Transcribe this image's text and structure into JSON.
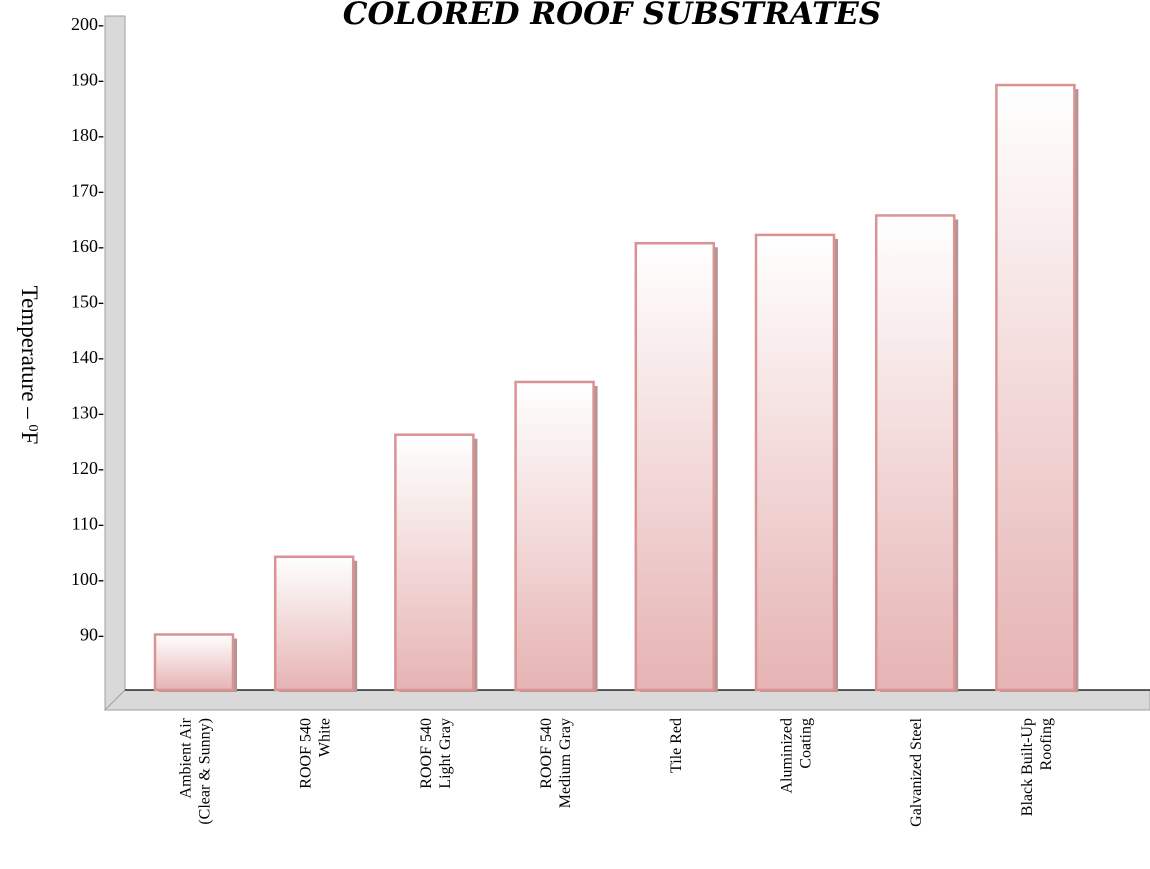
{
  "chart_data": {
    "type": "bar",
    "title": "COLORED ROOF SUBSTRATES",
    "ylabel": "Temperature – ",
    "ylabel_unit_sup": "0",
    "ylabel_unit": "F",
    "ylim": [
      80,
      200
    ],
    "yticks": [
      90,
      100,
      110,
      120,
      130,
      140,
      150,
      160,
      170,
      180,
      190,
      200
    ],
    "ytick_labels": [
      "90-",
      "100-",
      "110-",
      "120-",
      "130-",
      "140-",
      "150-",
      "160-",
      "170-",
      "180-",
      "190-",
      "200-"
    ],
    "categories": [
      {
        "lines": [
          "Ambient Air",
          "(Clear & Sunny)"
        ]
      },
      {
        "lines": [
          "ROOF 540",
          "White"
        ]
      },
      {
        "lines": [
          "ROOF 540",
          "Light Gray"
        ]
      },
      {
        "lines": [
          "ROOF 540",
          "Medium Gray"
        ]
      },
      {
        "lines": [
          "Tile Red"
        ]
      },
      {
        "lines": [
          "Aluminized",
          "Coating"
        ]
      },
      {
        "lines": [
          "Galvanized Steel"
        ]
      },
      {
        "lines": [
          "Black Built-Up",
          "Roofing"
        ]
      }
    ],
    "values": [
      90,
      104,
      126,
      135.5,
      160.5,
      162,
      165.5,
      189
    ],
    "grid": false,
    "legend": "none",
    "colors": {
      "bar_top": "#ffffff",
      "bar_bottom": "#e6b3b3",
      "bar_border": "#d99393",
      "bar_shadow": "#b49494",
      "wall": "#d9d9d9",
      "wall_border": "#a0a0a0"
    }
  }
}
